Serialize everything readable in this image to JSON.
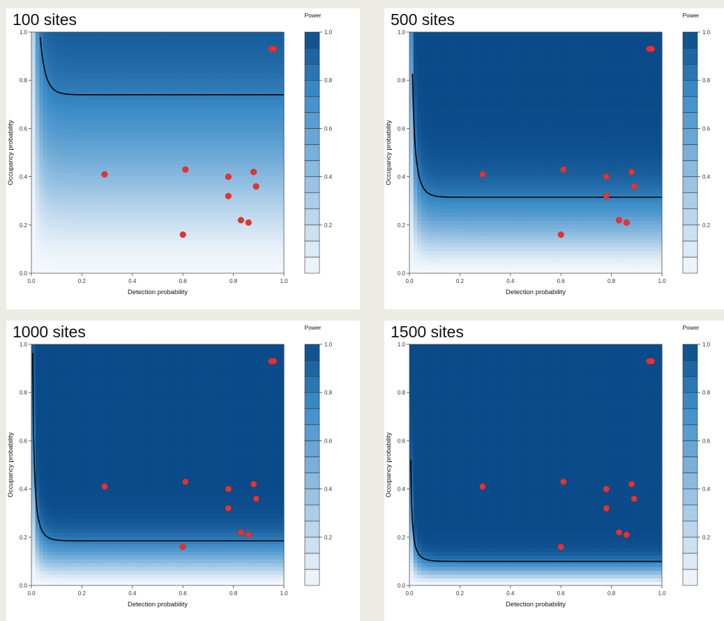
{
  "chart_data": [
    {
      "type": "heatmap",
      "title": "100 sites",
      "sites": 100,
      "xlabel": "Detection probability",
      "ylabel": "Occupancy probability",
      "xlim": [
        0,
        1
      ],
      "ylim": [
        0,
        1
      ],
      "xticks": [
        "0.0",
        "0.2",
        "0.4",
        "0.6",
        "0.8",
        "1.0"
      ],
      "yticks": [
        "0.0",
        "0.2",
        "0.4",
        "0.6",
        "0.8",
        "1.0"
      ],
      "legend": {
        "title": "Power",
        "ticks": [
          "0.2",
          "0.4",
          "0.6",
          "0.8",
          "1.0"
        ],
        "levels": 15,
        "placement": "right"
      },
      "contour_0_8_asymptote_psi": 0.74,
      "points": [
        {
          "x": 0.29,
          "y": 0.41
        },
        {
          "x": 0.61,
          "y": 0.43
        },
        {
          "x": 0.78,
          "y": 0.4
        },
        {
          "x": 0.88,
          "y": 0.42
        },
        {
          "x": 0.89,
          "y": 0.36
        },
        {
          "x": 0.78,
          "y": 0.32
        },
        {
          "x": 0.83,
          "y": 0.22
        },
        {
          "x": 0.86,
          "y": 0.21
        },
        {
          "x": 0.6,
          "y": 0.16
        },
        {
          "x": 0.95,
          "y": 0.93
        },
        {
          "x": 0.96,
          "y": 0.93
        }
      ]
    },
    {
      "type": "heatmap",
      "title": "500 sites",
      "sites": 500,
      "xlabel": "Detection probability",
      "ylabel": "Occupancy probability",
      "xlim": [
        0,
        1
      ],
      "ylim": [
        0,
        1
      ],
      "xticks": [
        "0.0",
        "0.2",
        "0.4",
        "0.6",
        "0.8",
        "1.0"
      ],
      "yticks": [
        "0.0",
        "0.2",
        "0.4",
        "0.6",
        "0.8",
        "1.0"
      ],
      "legend": {
        "title": "Power",
        "ticks": [
          "0.2",
          "0.4",
          "0.6",
          "0.8",
          "1.0"
        ],
        "levels": 15,
        "placement": "right"
      },
      "contour_0_8_asymptote_psi": 0.315,
      "points": [
        {
          "x": 0.29,
          "y": 0.41
        },
        {
          "x": 0.61,
          "y": 0.43
        },
        {
          "x": 0.78,
          "y": 0.4
        },
        {
          "x": 0.88,
          "y": 0.42
        },
        {
          "x": 0.89,
          "y": 0.36
        },
        {
          "x": 0.78,
          "y": 0.32
        },
        {
          "x": 0.83,
          "y": 0.22
        },
        {
          "x": 0.86,
          "y": 0.21
        },
        {
          "x": 0.6,
          "y": 0.16
        },
        {
          "x": 0.95,
          "y": 0.93
        },
        {
          "x": 0.96,
          "y": 0.93
        }
      ]
    },
    {
      "type": "heatmap",
      "title": "1000 sites",
      "sites": 1000,
      "xlabel": "Detection probability",
      "ylabel": "Occupancy probability",
      "xlim": [
        0,
        1
      ],
      "ylim": [
        0,
        1
      ],
      "xticks": [
        "0.0",
        "0.2",
        "0.4",
        "0.6",
        "0.8",
        "1.0"
      ],
      "yticks": [
        "0.0",
        "0.2",
        "0.4",
        "0.6",
        "0.8",
        "1.0"
      ],
      "legend": {
        "title": "Power",
        "ticks": [
          "0.2",
          "0.4",
          "0.6",
          "0.8",
          "1.0"
        ],
        "levels": 15,
        "placement": "right"
      },
      "contour_0_8_asymptote_psi": 0.185,
      "points": [
        {
          "x": 0.29,
          "y": 0.41
        },
        {
          "x": 0.61,
          "y": 0.43
        },
        {
          "x": 0.78,
          "y": 0.4
        },
        {
          "x": 0.88,
          "y": 0.42
        },
        {
          "x": 0.89,
          "y": 0.36
        },
        {
          "x": 0.78,
          "y": 0.32
        },
        {
          "x": 0.83,
          "y": 0.22
        },
        {
          "x": 0.86,
          "y": 0.21
        },
        {
          "x": 0.6,
          "y": 0.16
        },
        {
          "x": 0.95,
          "y": 0.93
        },
        {
          "x": 0.96,
          "y": 0.93
        }
      ]
    },
    {
      "type": "heatmap",
      "title": "1500 sites",
      "sites": 1500,
      "xlabel": "Detection probability",
      "ylabel": "Occupancy probability",
      "xlim": [
        0,
        1
      ],
      "ylim": [
        0,
        1
      ],
      "xticks": [
        "0.0",
        "0.2",
        "0.4",
        "0.6",
        "0.8",
        "1.0"
      ],
      "yticks": [
        "0.0",
        "0.2",
        "0.4",
        "0.6",
        "0.8",
        "1.0"
      ],
      "legend": {
        "title": "Power",
        "ticks": [
          "0.2",
          "0.4",
          "0.6",
          "0.8",
          "1.0"
        ],
        "levels": 15,
        "placement": "right"
      },
      "contour_0_8_asymptote_psi": 0.1,
      "points": [
        {
          "x": 0.29,
          "y": 0.41
        },
        {
          "x": 0.61,
          "y": 0.43
        },
        {
          "x": 0.78,
          "y": 0.4
        },
        {
          "x": 0.88,
          "y": 0.42
        },
        {
          "x": 0.89,
          "y": 0.36
        },
        {
          "x": 0.78,
          "y": 0.32
        },
        {
          "x": 0.83,
          "y": 0.22
        },
        {
          "x": 0.86,
          "y": 0.21
        },
        {
          "x": 0.6,
          "y": 0.16
        },
        {
          "x": 0.95,
          "y": 0.93
        },
        {
          "x": 0.96,
          "y": 0.93
        }
      ]
    }
  ],
  "colors": {
    "low": "#f4f8fd",
    "high": "#0a4b8a",
    "contour": "#000000",
    "point": "#e8322e",
    "background": "#ecebe4"
  }
}
